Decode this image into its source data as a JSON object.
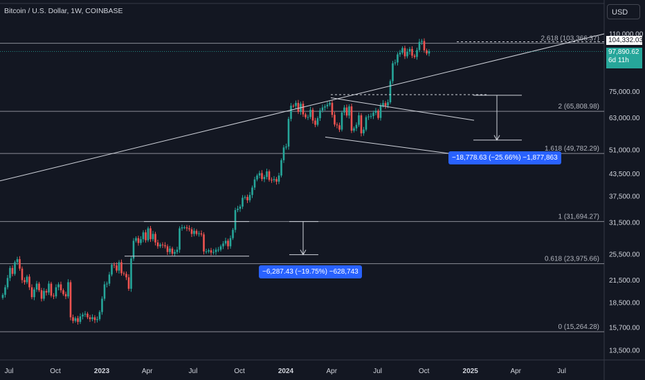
{
  "header": {
    "title": "Bitcoin / U.S. Dollar, 1W, COINBASE",
    "currency": "USD"
  },
  "price_tags": {
    "marked_price": "104,332.03",
    "current_price": "97,890.62",
    "countdown": "6d 11h"
  },
  "measurements": [
    {
      "label": "−18,778.63 (−25.66%) −1,877,863"
    },
    {
      "label": "−6,287.43 (−19.75%) −628,743"
    }
  ],
  "colors": {
    "background": "#131722",
    "up": "#26a69a",
    "down": "#ef5350",
    "accent": "#2962ff"
  },
  "chart_data": {
    "type": "candlestick",
    "interval": "1W",
    "scale": "log",
    "y_ticks": [
      "110,000.00",
      "75,000.00",
      "63,000.00",
      "51,000.00",
      "43,500.00",
      "37,500.00",
      "31,500.00",
      "25,500.00",
      "21,500.00",
      "18,500.00",
      "15,700.00",
      "13,500.00"
    ],
    "y_tick_values": [
      110000,
      75000,
      63000,
      51000,
      43500,
      37500,
      31500,
      25500,
      21500,
      18500,
      15700,
      13500
    ],
    "x_ticks": [
      {
        "label": "Jul",
        "date": "2022-07-01",
        "bold": false
      },
      {
        "label": "Oct",
        "date": "2022-10-01",
        "bold": false
      },
      {
        "label": "2023",
        "date": "2023-01-01",
        "bold": true
      },
      {
        "label": "Apr",
        "date": "2023-04-01",
        "bold": false
      },
      {
        "label": "Jul",
        "date": "2023-07-01",
        "bold": false
      },
      {
        "label": "Oct",
        "date": "2023-10-01",
        "bold": false
      },
      {
        "label": "2024",
        "date": "2024-01-01",
        "bold": true
      },
      {
        "label": "Apr",
        "date": "2024-04-01",
        "bold": false
      },
      {
        "label": "Jul",
        "date": "2024-07-01",
        "bold": false
      },
      {
        "label": "Oct",
        "date": "2024-10-01",
        "bold": false
      },
      {
        "label": "2025",
        "date": "2025-01-01",
        "bold": true
      },
      {
        "label": "Apr",
        "date": "2025-04-01",
        "bold": false
      },
      {
        "label": "Jul",
        "date": "2025-07-01",
        "bold": false
      }
    ],
    "fib_levels": [
      {
        "label": "2.618 (103,366.37)",
        "value": 103366.37
      },
      {
        "label": "2 (65,808.98)",
        "value": 65808.98
      },
      {
        "label": "1.618 (49,782.29)",
        "value": 49782.29
      },
      {
        "label": "1 (31,694.27)",
        "value": 31694.27
      },
      {
        "label": "0.618 (23,975.66)",
        "value": 23975.66
      },
      {
        "label": "0 (15,264.28)",
        "value": 15264.28
      }
    ],
    "closes": [
      19500,
      20500,
      21800,
      23300,
      22400,
      24200,
      24700,
      23200,
      21500,
      21200,
      22000,
      20500,
      19200,
      20200,
      21000,
      20100,
      19000,
      20000,
      19800,
      21000,
      19400,
      19300,
      20500,
      20900,
      20100,
      19600,
      19300,
      21200,
      16800,
      16400,
      16700,
      16300,
      16900,
      17100,
      17200,
      16800,
      16600,
      16800,
      16500,
      16600,
      17400,
      19000,
      20900,
      21000,
      22300,
      23800,
      23700,
      22900,
      24200,
      22500,
      22400,
      21900,
      20300,
      24800,
      27900,
      28400,
      27500,
      28200,
      29500,
      28000,
      30300,
      28200,
      29200,
      27600,
      26900,
      27200,
      27100,
      26900,
      25900,
      26500,
      25600,
      25900,
      26300,
      30300,
      30500,
      30500,
      30300,
      30100,
      29200,
      29800,
      29200,
      29300,
      29100,
      26000,
      26000,
      26200,
      25800,
      25900,
      26300,
      26300,
      26900,
      27400,
      27900,
      26900,
      28400,
      30000,
      34200,
      34500,
      35000,
      37100,
      37300,
      36500,
      37800,
      39700,
      41900,
      43000,
      43700,
      42000,
      42600,
      44200,
      41800,
      41700,
      42000,
      41300,
      43000,
      47600,
      51800,
      52100,
      62600,
      68300,
      68200,
      69600,
      65600,
      69200,
      64500,
      63300,
      63400,
      66500,
      61900,
      60200,
      62900,
      66200,
      67500,
      68000,
      68800,
      69600,
      64300,
      60300,
      60000,
      58300,
      65300,
      67500,
      64000,
      68000,
      57900,
      58800,
      60200,
      64100,
      56900,
      58300,
      63300,
      63600,
      63800,
      65200,
      66100,
      63000,
      68400,
      69500,
      68300,
      69900,
      80400,
      90500,
      91000,
      96000,
      97100,
      100100,
      94800,
      97800,
      99500,
      95200,
      94400,
      98800,
      104300,
      104900,
      98600,
      96600,
      97900
    ],
    "marked_price_value": 104332.03,
    "current_price_value": 97890.62
  }
}
